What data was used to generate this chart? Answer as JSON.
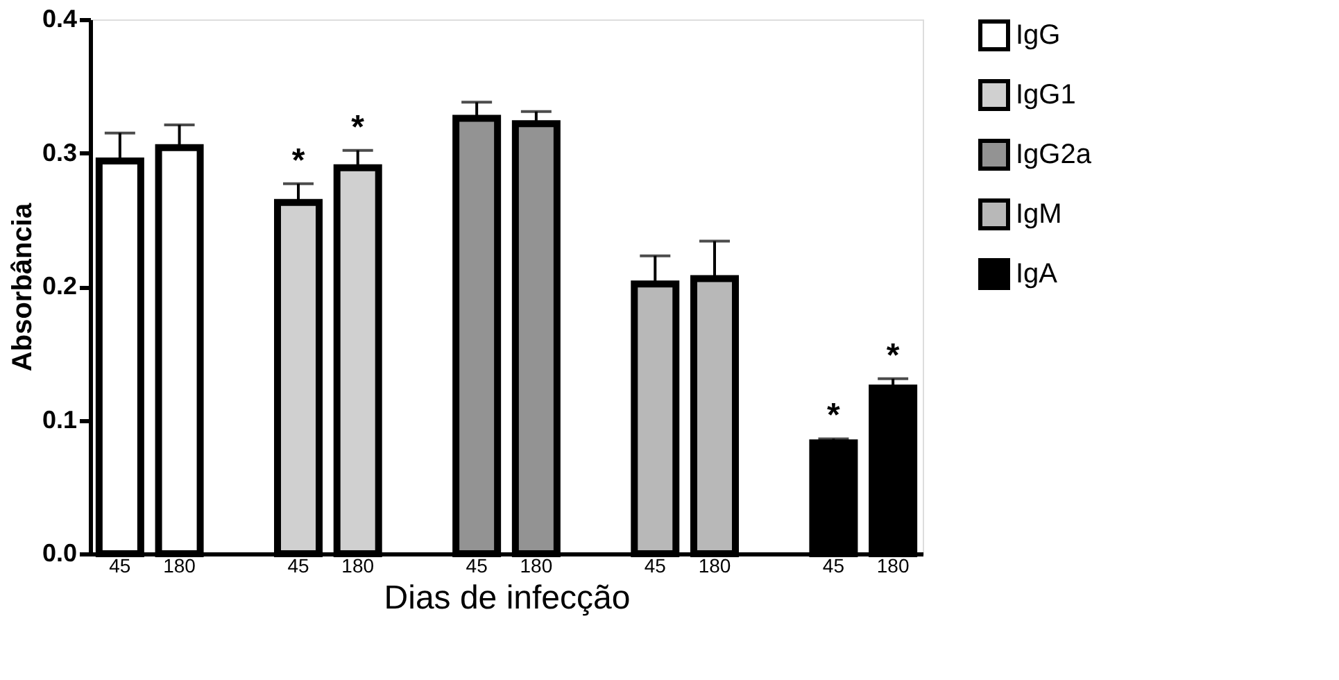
{
  "chart_data": {
    "type": "bar",
    "xlabel": "Dias de infecção",
    "ylabel": "Absorbância",
    "categories": [
      "45",
      "180",
      null,
      "45",
      "180",
      null,
      "45",
      "180",
      null,
      "45",
      "180",
      null,
      "45",
      "180"
    ],
    "series": [
      {
        "name": "IgG",
        "color": "#ffffff",
        "values": [
          0.294,
          0.304,
          null,
          null,
          null,
          null,
          null,
          null,
          null,
          null,
          null,
          null,
          null,
          null
        ],
        "errors": [
          [
            0.294,
            0.315
          ],
          [
            0.304,
            0.321
          ],
          null,
          null,
          null,
          null,
          null,
          null,
          null,
          null,
          null,
          null,
          null,
          null
        ]
      },
      {
        "name": "IgG1",
        "color": "#d0d0d0",
        "values": [
          null,
          null,
          null,
          0.263,
          0.289,
          null,
          null,
          null,
          null,
          null,
          null,
          null,
          null,
          null
        ],
        "errors": [
          null,
          null,
          null,
          [
            0.263,
            0.277
          ],
          [
            0.289,
            0.302
          ],
          null,
          null,
          null,
          null,
          null,
          null,
          null,
          null,
          null
        ],
        "value_labels": [
          null,
          null,
          null,
          "*",
          "*",
          null,
          null,
          null,
          null,
          null,
          null,
          null,
          null,
          null
        ]
      },
      {
        "name": "IgG2a",
        "color": "#939393",
        "values": [
          null,
          null,
          null,
          null,
          null,
          null,
          0.326,
          0.322,
          null,
          null,
          null,
          null,
          null,
          null
        ],
        "errors": [
          null,
          null,
          null,
          null,
          null,
          null,
          [
            0.326,
            0.338
          ],
          [
            0.322,
            0.331
          ],
          null,
          null,
          null,
          null,
          null,
          null
        ]
      },
      {
        "name": "IgM",
        "color": "#b8b8b8",
        "values": [
          null,
          null,
          null,
          null,
          null,
          null,
          null,
          null,
          null,
          0.202,
          0.206,
          null,
          null,
          null
        ],
        "errors": [
          null,
          null,
          null,
          null,
          null,
          null,
          null,
          null,
          null,
          [
            0.202,
            0.223
          ],
          [
            0.206,
            0.234
          ],
          null,
          null,
          null
        ]
      },
      {
        "name": "IgA",
        "color": "#000000",
        "values": [
          null,
          null,
          null,
          null,
          null,
          null,
          null,
          null,
          null,
          null,
          null,
          null,
          0.083,
          0.124
        ],
        "errors": [
          null,
          null,
          null,
          null,
          null,
          null,
          null,
          null,
          null,
          null,
          null,
          null,
          [
            0.083,
            0.086
          ],
          [
            0.124,
            0.131
          ]
        ],
        "value_labels": [
          null,
          null,
          null,
          null,
          null,
          null,
          null,
          null,
          null,
          null,
          null,
          null,
          "*",
          "*"
        ]
      }
    ],
    "ylim": [
      0,
      0.4
    ],
    "yticks": [
      {
        "value": 0,
        "label": "0.0"
      },
      {
        "value": 0.1,
        "label": "0.1"
      },
      {
        "value": 0.2,
        "label": "0.2"
      },
      {
        "value": 0.3,
        "label": "0.3"
      },
      {
        "value": 0.4,
        "label": "0.4"
      }
    ],
    "grid": false,
    "legend": "top right"
  }
}
